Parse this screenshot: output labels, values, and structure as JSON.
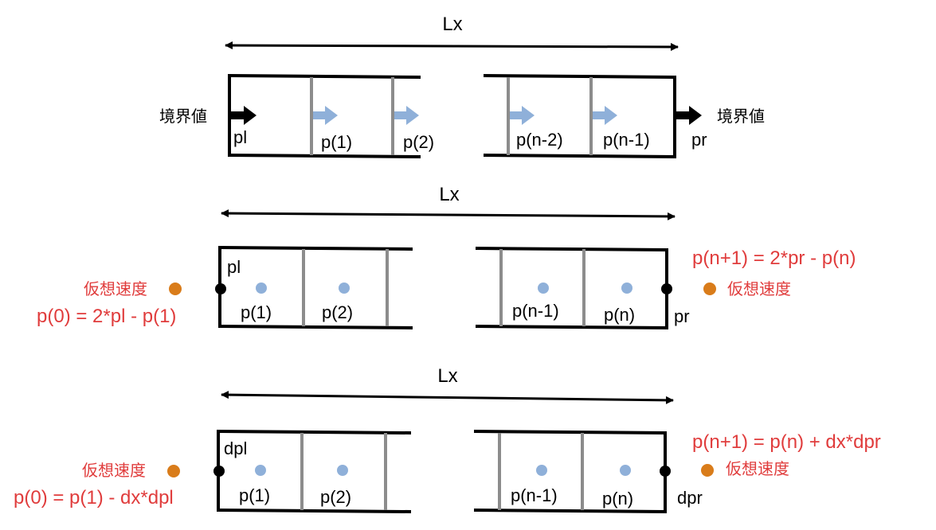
{
  "colors": {
    "line": "#000000",
    "divider": "#8c8c8c",
    "flow_arrow": "#8fb0d9",
    "point": "#8fb0d9",
    "ghost_point": "#d97c1a",
    "red_text": "#e03c3c"
  },
  "panel1": {
    "lx_label": "Lx",
    "left_boundary_label": "境界値",
    "right_boundary_label": "境界値",
    "pl": "pl",
    "pr": "pr",
    "cells": [
      "p(1)",
      "p(2)",
      "p(n-2)",
      "p(n-1)"
    ]
  },
  "panel2": {
    "lx_label": "Lx",
    "pl": "pl",
    "pr": "pr",
    "cells": [
      "p(1)",
      "p(2)",
      "p(n-1)",
      "p(n)"
    ],
    "left_ghost_label": "仮想速度",
    "right_ghost_label": "仮想速度",
    "left_formula": "p(0) = 2*pl - p(1)",
    "right_formula": "p(n+1) = 2*pr - p(n)"
  },
  "panel3": {
    "lx_label": "Lx",
    "dpl": "dpl",
    "dpr": "dpr",
    "cells": [
      "p(1)",
      "p(2)",
      "p(n-1)",
      "p(n)"
    ],
    "left_ghost_label": "仮想速度",
    "right_ghost_label": "仮想速度",
    "left_formula": "p(0) = p(1) - dx*dpl",
    "right_formula": "p(n+1) = p(n) + dx*dpr"
  }
}
